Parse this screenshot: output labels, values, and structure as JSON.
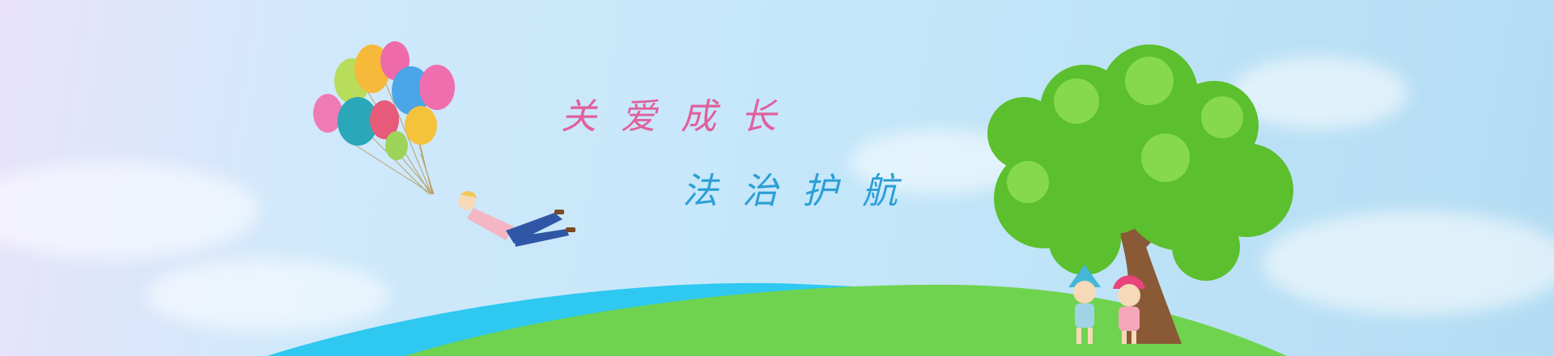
{
  "banner": {
    "slogan_line1": "关爱成长",
    "slogan_line2": "法治护航"
  },
  "colors": {
    "sky_left": "#e9e3fb",
    "sky_right": "#b3dcf3",
    "grass": "#6fd34f",
    "river": "#2fc8f0",
    "tree_leaves": "#5bbf2e",
    "trunk": "#8a5a36",
    "slogan_pink": "#e0609c",
    "slogan_blue": "#2b9fd6"
  },
  "illustration": {
    "balloon_icon": "balloons-icon",
    "figure_icon": "flying-person-icon",
    "tree_icon": "tree-icon",
    "kids_icon": "children-icon"
  }
}
